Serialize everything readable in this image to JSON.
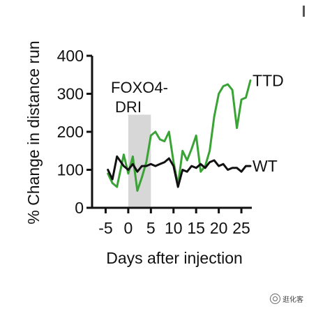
{
  "chart_data": {
    "type": "line",
    "ylabel": "% Change in distance run",
    "xlabel": "Days after injection",
    "xlim": [
      -8,
      29
    ],
    "ylim": [
      0,
      400
    ],
    "yticks": [
      0,
      100,
      200,
      300,
      400
    ],
    "xticks": [
      -5,
      0,
      5,
      10,
      15,
      20,
      25
    ],
    "ytick_labels": [
      "0",
      "100",
      "200",
      "300",
      "400"
    ],
    "xtick_labels": [
      "-5",
      "0",
      "5",
      "10",
      "15",
      "20",
      "25"
    ],
    "shaded_region": {
      "x": [
        0,
        5
      ],
      "label": "FOXO4-DRI",
      "label_line1": "FOXO4-",
      "label_line2": "DRI"
    },
    "series": [
      {
        "name": "TTD",
        "color": "#3aa335",
        "x": [
          -4.5,
          -3.5,
          -2.5,
          -1,
          0,
          1,
          2,
          3,
          4,
          5,
          6,
          7,
          8,
          9,
          10,
          11,
          12,
          13,
          14,
          15,
          16,
          17,
          18,
          19,
          20,
          21,
          22,
          23,
          24,
          25,
          26,
          27
        ],
        "y": [
          90,
          65,
          55,
          140,
          90,
          135,
          45,
          80,
          120,
          190,
          200,
          180,
          175,
          200,
          120,
          60,
          150,
          125,
          155,
          190,
          95,
          110,
          150,
          240,
          300,
          320,
          325,
          310,
          210,
          285,
          290,
          335
        ]
      },
      {
        "name": "WT",
        "color": "#111111",
        "x": [
          -4.5,
          -3.5,
          -2.5,
          -1,
          0,
          1,
          2,
          3,
          4,
          5,
          6,
          7,
          8,
          9,
          10,
          11,
          12,
          13,
          14,
          15,
          16,
          17,
          18,
          19,
          20,
          21,
          22,
          23,
          24,
          25,
          26,
          27
        ],
        "y": [
          100,
          75,
          135,
          110,
          100,
          115,
          95,
          110,
          110,
          115,
          110,
          115,
          120,
          130,
          110,
          55,
          100,
          95,
          110,
          105,
          115,
          105,
          120,
          125,
          110,
          115,
          100,
          105,
          105,
          95,
          110,
          110
        ]
      }
    ]
  },
  "watermark": "逛化客"
}
